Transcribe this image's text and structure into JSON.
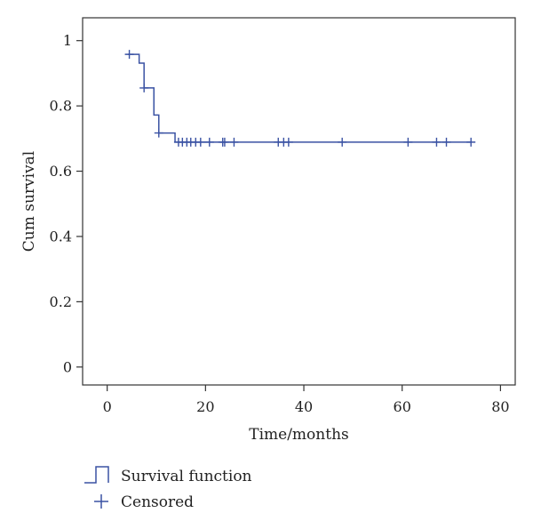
{
  "chart_data": {
    "type": "line",
    "title": "",
    "xlabel": "Time/months",
    "ylabel": "Cum survival",
    "xlim": [
      -5,
      83
    ],
    "ylim": [
      -0.055,
      1.07
    ],
    "x_ticks": [
      0,
      20,
      40,
      60,
      80
    ],
    "y_ticks": [
      0,
      0.2,
      0.4,
      0.6,
      0.8,
      1
    ],
    "x_tick_labels": [
      "0",
      "20",
      "40",
      "60",
      "80"
    ],
    "y_tick_labels": [
      "0",
      "0.2",
      "0.4",
      "0.6",
      "0.8",
      "1"
    ],
    "grid": false,
    "legend_position": "bottom-left",
    "series": [
      {
        "name": "Survival function",
        "step": true,
        "color": "#3a52a3",
        "x": [
          4.2,
          6.5,
          7.5,
          9.5,
          10.5,
          13.8,
          74.0
        ],
        "y": [
          0.958,
          0.931,
          0.855,
          0.772,
          0.717,
          0.689,
          0.689
        ]
      },
      {
        "name": "Censored",
        "marker": "+",
        "color": "#3a52a3",
        "x": [
          4.5,
          7.5,
          10.5,
          14.5,
          15.3,
          16.2,
          17.0,
          18.0,
          19.0,
          20.8,
          23.5,
          23.9,
          25.8,
          34.8,
          35.9,
          36.9,
          47.8,
          61.2,
          67.0,
          69.0,
          74.0
        ],
        "y": [
          0.958,
          0.855,
          0.717,
          0.689,
          0.689,
          0.689,
          0.689,
          0.689,
          0.689,
          0.689,
          0.689,
          0.689,
          0.689,
          0.689,
          0.689,
          0.689,
          0.689,
          0.689,
          0.689,
          0.689,
          0.689
        ]
      }
    ]
  },
  "legend": {
    "items": [
      {
        "label": "Survival function",
        "symbol": "step"
      },
      {
        "label": "Censored",
        "symbol": "plus"
      }
    ]
  }
}
